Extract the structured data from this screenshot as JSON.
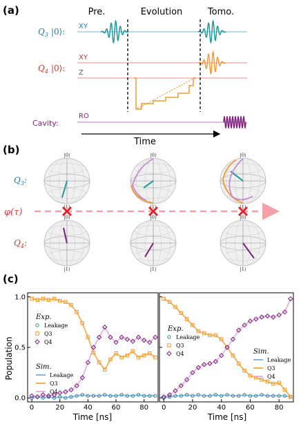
{
  "panel_a": {
    "label": "(a)",
    "stage_pre": "Pre.",
    "stage_evolution": "Evolution",
    "stage_tomo": "Tomo.",
    "q3_label": "Q",
    "q3_sub": "3",
    "q3_ket": "|0⟩:",
    "q3_xy": "XY",
    "q4_label": "Q",
    "q4_sub": "4",
    "q4_ket": "|0⟩:",
    "q4_xy": "XY",
    "q4_z": "Z",
    "cavity_label": "Cavity:",
    "cavity_ro": "RO",
    "time_label": "Time"
  },
  "panel_b": {
    "label": "(b)",
    "q3_label": "Q",
    "q3_sub": "3",
    "q4_label": "Q",
    "q4_sub": "4",
    "phi_label": "φ(τ)",
    "ket0": "|0⟩",
    "ket1": "|1⟩"
  },
  "panel_c": {
    "label": "(c)",
    "ylabel": "Population",
    "xlabel": "Time [ns]",
    "exp_title": "Exp.",
    "sim_title": "Sim.",
    "legend_leakage": "Leakage",
    "legend_q3": "Q3",
    "legend_q4": "Q4",
    "yticks": [
      "0.0",
      "0.5",
      "1.0"
    ],
    "xticks": [
      "0",
      "20",
      "40",
      "60",
      "80"
    ],
    "colors": {
      "leakage": "#2e8b9b",
      "q3": "#f39a2f",
      "q4": "#7b1f7a",
      "sim_leakage": "#8ab4dc",
      "sim_q3": "#f5b04a",
      "sim_q4": "#e3b3e0"
    }
  },
  "chart_data": [
    {
      "type": "scatter",
      "title": "",
      "xlabel": "Time [ns]",
      "ylabel": "Population",
      "xlim": [
        -3,
        90
      ],
      "ylim": [
        -0.04,
        1.04
      ],
      "series": [
        {
          "name": "Leakage",
          "x": [
            0,
            4,
            8,
            12,
            16,
            20,
            24,
            28,
            32,
            36,
            40,
            44,
            48,
            52,
            56,
            60,
            64,
            68,
            72,
            76,
            80,
            84,
            88
          ],
          "y": [
            0.0,
            0.01,
            0.0,
            0.01,
            0.0,
            0.01,
            0.0,
            0.01,
            0.02,
            0.03,
            0.02,
            0.02,
            0.02,
            0.03,
            0.02,
            0.02,
            0.03,
            0.02,
            0.02,
            0.03,
            0.02,
            0.02,
            0.02
          ]
        },
        {
          "name": "Q3",
          "x": [
            0,
            4,
            8,
            12,
            16,
            20,
            24,
            28,
            32,
            36,
            40,
            44,
            48,
            52,
            56,
            60,
            64,
            68,
            72,
            76,
            80,
            84,
            88
          ],
          "y": [
            0.98,
            0.97,
            0.98,
            0.97,
            0.98,
            0.96,
            0.95,
            0.92,
            0.85,
            0.74,
            0.6,
            0.45,
            0.35,
            0.28,
            0.38,
            0.44,
            0.4,
            0.42,
            0.46,
            0.4,
            0.42,
            0.44,
            0.4
          ]
        },
        {
          "name": "Q4",
          "x": [
            0,
            4,
            8,
            12,
            16,
            20,
            24,
            28,
            32,
            36,
            40,
            44,
            48,
            52,
            56,
            60,
            64,
            68,
            72,
            76,
            80,
            84,
            88
          ],
          "y": [
            0.02,
            0.01,
            0.03,
            0.02,
            0.03,
            0.05,
            0.06,
            0.08,
            0.12,
            0.2,
            0.35,
            0.5,
            0.6,
            0.7,
            0.6,
            0.55,
            0.6,
            0.58,
            0.56,
            0.6,
            0.57,
            0.55,
            0.6
          ]
        }
      ]
    },
    {
      "type": "scatter",
      "title": "",
      "xlabel": "Time [ns]",
      "xlim": [
        -3,
        90
      ],
      "ylim": [
        -0.04,
        1.04
      ],
      "series": [
        {
          "name": "Leakage",
          "x": [
            0,
            4,
            8,
            12,
            16,
            20,
            24,
            28,
            32,
            36,
            40,
            44,
            48,
            52,
            56,
            60,
            64,
            68,
            72,
            76,
            80,
            84,
            88
          ],
          "y": [
            0.0,
            0.01,
            0.02,
            0.02,
            0.03,
            0.02,
            0.03,
            0.02,
            0.02,
            0.03,
            0.02,
            0.03,
            0.02,
            0.02,
            0.03,
            0.02,
            0.02,
            0.03,
            0.02,
            0.02,
            0.02,
            0.02,
            0.01
          ]
        },
        {
          "name": "Q3",
          "x": [
            0,
            4,
            8,
            12,
            16,
            20,
            24,
            28,
            32,
            36,
            40,
            44,
            48,
            52,
            56,
            60,
            64,
            68,
            72,
            76,
            80,
            84,
            88
          ],
          "y": [
            0.98,
            0.95,
            0.9,
            0.84,
            0.78,
            0.72,
            0.66,
            0.64,
            0.62,
            0.62,
            0.58,
            0.5,
            0.42,
            0.34,
            0.27,
            0.22,
            0.2,
            0.18,
            0.16,
            0.14,
            0.15,
            0.08,
            0.01
          ]
        },
        {
          "name": "Q4",
          "x": [
            0,
            4,
            8,
            12,
            16,
            20,
            24,
            28,
            32,
            36,
            40,
            44,
            48,
            52,
            56,
            60,
            64,
            68,
            72,
            76,
            80,
            84,
            88
          ],
          "y": [
            0.01,
            0.03,
            0.07,
            0.12,
            0.18,
            0.25,
            0.3,
            0.33,
            0.34,
            0.36,
            0.42,
            0.5,
            0.58,
            0.67,
            0.72,
            0.76,
            0.78,
            0.8,
            0.81,
            0.8,
            0.82,
            0.85,
            0.98
          ]
        }
      ]
    }
  ]
}
